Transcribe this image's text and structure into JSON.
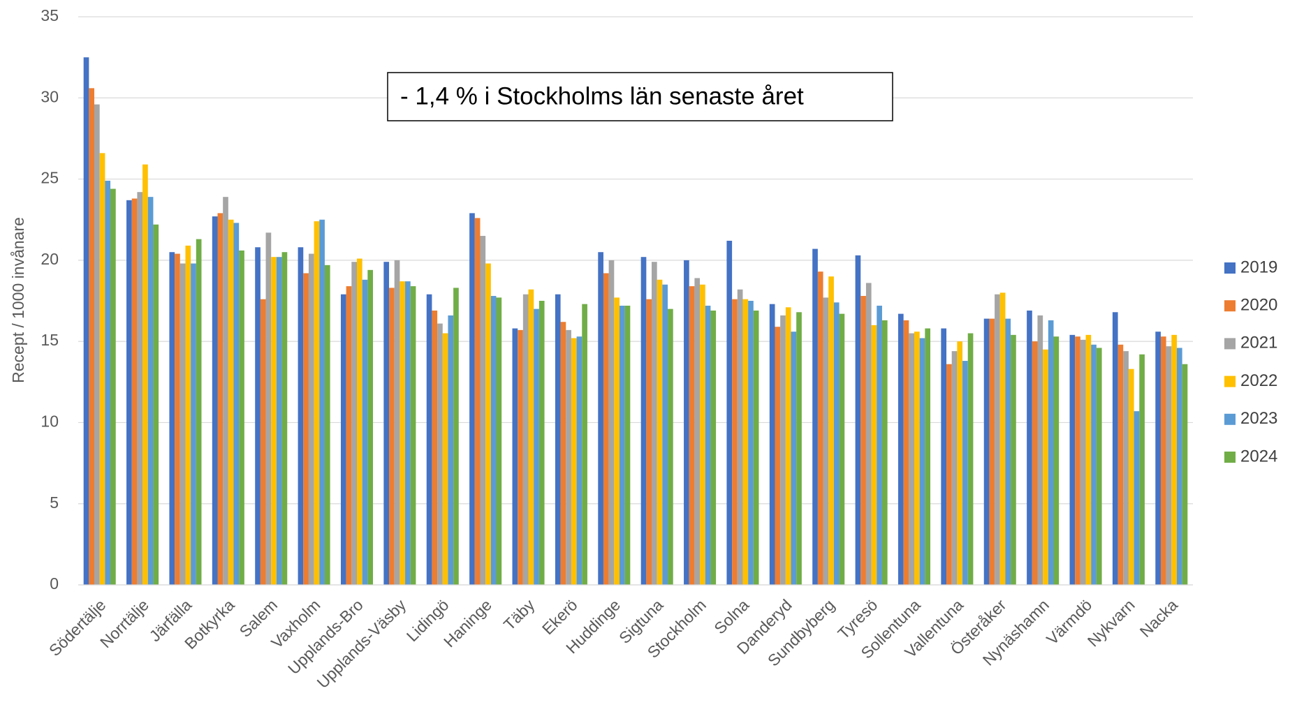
{
  "chart_data": {
    "type": "bar",
    "ylabel": "Recept / 1000 invånare",
    "annotation": "- 1,4 % i Stockholms län senaste året",
    "categories": [
      "Södertälje",
      "Norrtälje",
      "Järfälla",
      "Botkyrka",
      "Salem",
      "Vaxholm",
      "Upplands-Bro",
      "Upplands-Väsby",
      "Lidingö",
      "Haninge",
      "Täby",
      "Ekerö",
      "Huddinge",
      "Sigtuna",
      "Stockholm",
      "Solna",
      "Danderyd",
      "Sundbyberg",
      "Tyresö",
      "Sollentuna",
      "Vallentuna",
      "Österåker",
      "Nynäshamn",
      "Värmdö",
      "Nykvarn",
      "Nacka"
    ],
    "series": [
      {
        "name": "2019",
        "color": "#4472c4",
        "values": [
          32.5,
          23.7,
          20.5,
          22.7,
          20.8,
          20.8,
          17.9,
          19.9,
          17.9,
          22.9,
          15.8,
          17.9,
          20.5,
          20.2,
          20.0,
          21.2,
          17.3,
          20.7,
          20.3,
          16.7,
          15.8,
          16.4,
          16.9,
          15.4,
          16.8,
          15.6
        ]
      },
      {
        "name": "2020",
        "color": "#ed7d31",
        "values": [
          30.6,
          23.8,
          20.4,
          22.9,
          17.6,
          19.2,
          18.4,
          18.3,
          16.9,
          22.6,
          15.7,
          16.2,
          19.2,
          17.6,
          18.4,
          17.6,
          15.9,
          19.3,
          17.8,
          16.3,
          13.6,
          16.4,
          15.0,
          15.3,
          14.8,
          15.3
        ]
      },
      {
        "name": "2021",
        "color": "#a5a5a5",
        "values": [
          29.6,
          24.2,
          19.8,
          23.9,
          21.7,
          20.4,
          19.9,
          20.0,
          16.1,
          21.5,
          17.9,
          15.7,
          20.0,
          19.9,
          18.9,
          18.2,
          16.6,
          17.7,
          18.6,
          15.5,
          14.4,
          17.9,
          16.6,
          15.1,
          14.4,
          14.7
        ]
      },
      {
        "name": "2022",
        "color": "#ffc000",
        "values": [
          26.6,
          25.9,
          20.9,
          22.5,
          20.2,
          22.4,
          20.1,
          18.7,
          15.5,
          19.8,
          18.2,
          15.2,
          17.7,
          18.8,
          18.5,
          17.6,
          17.1,
          19.0,
          16.0,
          15.6,
          15.0,
          18.0,
          14.5,
          15.4,
          13.3,
          15.4
        ]
      },
      {
        "name": "2023",
        "color": "#5b9bd5",
        "values": [
          24.9,
          23.9,
          19.8,
          22.3,
          20.2,
          22.5,
          18.8,
          18.7,
          16.6,
          17.8,
          17.0,
          15.3,
          17.2,
          18.5,
          17.2,
          17.5,
          15.6,
          17.4,
          17.2,
          15.2,
          13.8,
          16.4,
          16.3,
          14.8,
          10.7,
          14.6
        ]
      },
      {
        "name": "2024",
        "color": "#70ad47",
        "values": [
          24.4,
          22.2,
          21.3,
          20.6,
          20.5,
          19.7,
          19.4,
          18.4,
          18.3,
          17.7,
          17.5,
          17.3,
          17.2,
          17.0,
          16.9,
          16.9,
          16.8,
          16.7,
          16.3,
          15.8,
          15.5,
          15.4,
          15.3,
          14.6,
          14.2,
          13.6
        ]
      }
    ],
    "ylim": [
      0,
      35
    ],
    "yticks": [
      0,
      5,
      10,
      15,
      20,
      25,
      30,
      35
    ],
    "grid": true,
    "legend": "right"
  }
}
